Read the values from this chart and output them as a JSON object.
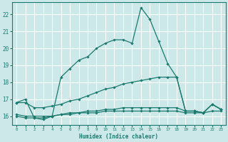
{
  "xlabel": "Humidex (Indice chaleur)",
  "xlim": [
    -0.5,
    23.5
  ],
  "ylim": [
    15.5,
    22.7
  ],
  "yticks": [
    16,
    17,
    18,
    19,
    20,
    21,
    22
  ],
  "xticks": [
    0,
    1,
    2,
    3,
    4,
    5,
    6,
    7,
    8,
    9,
    10,
    11,
    12,
    13,
    14,
    15,
    16,
    17,
    18,
    19,
    20,
    21,
    22,
    23
  ],
  "bg_color": "#cce8e8",
  "line_color": "#1a7a6e",
  "grid_color": "#ffffff",
  "line1_x": [
    0,
    1,
    2,
    3,
    4,
    5,
    6,
    7,
    8,
    9,
    10,
    11,
    12,
    13,
    14,
    15,
    16,
    17,
    18,
    19,
    20,
    21,
    22,
    23
  ],
  "line1_y": [
    16.8,
    17.0,
    15.9,
    15.8,
    16.0,
    18.3,
    18.8,
    19.3,
    19.5,
    20.0,
    20.3,
    20.5,
    20.5,
    20.3,
    22.4,
    21.7,
    20.4,
    19.1,
    18.3,
    16.3,
    16.3,
    16.2,
    16.7,
    16.4
  ],
  "line2_x": [
    0,
    1,
    2,
    3,
    4,
    5,
    6,
    7,
    8,
    9,
    10,
    11,
    12,
    13,
    14,
    15,
    16,
    17,
    18,
    19,
    20,
    21,
    22,
    23
  ],
  "line2_y": [
    16.8,
    16.8,
    16.5,
    16.5,
    16.6,
    16.7,
    16.9,
    17.0,
    17.2,
    17.4,
    17.6,
    17.7,
    17.9,
    18.0,
    18.1,
    18.2,
    18.3,
    18.3,
    18.3,
    16.3,
    16.3,
    16.2,
    16.7,
    16.4
  ],
  "line3_x": [
    0,
    1,
    2,
    3,
    4,
    5,
    6,
    7,
    8,
    9,
    10,
    11,
    12,
    13,
    14,
    15,
    16,
    17,
    18,
    19,
    20,
    21,
    22,
    23
  ],
  "line3_y": [
    16.0,
    15.9,
    15.9,
    15.9,
    16.0,
    16.1,
    16.2,
    16.2,
    16.3,
    16.3,
    16.4,
    16.4,
    16.5,
    16.5,
    16.5,
    16.5,
    16.5,
    16.5,
    16.5,
    16.3,
    16.3,
    16.2,
    16.7,
    16.4
  ],
  "line4_x": [
    0,
    1,
    2,
    3,
    4,
    5,
    6,
    7,
    8,
    9,
    10,
    11,
    12,
    13,
    14,
    15,
    16,
    17,
    18,
    19,
    20,
    21,
    22,
    23
  ],
  "line4_y": [
    16.1,
    16.0,
    16.0,
    16.0,
    16.0,
    16.1,
    16.1,
    16.2,
    16.2,
    16.2,
    16.3,
    16.3,
    16.3,
    16.3,
    16.3,
    16.3,
    16.3,
    16.3,
    16.3,
    16.2,
    16.2,
    16.2,
    16.3,
    16.3
  ]
}
